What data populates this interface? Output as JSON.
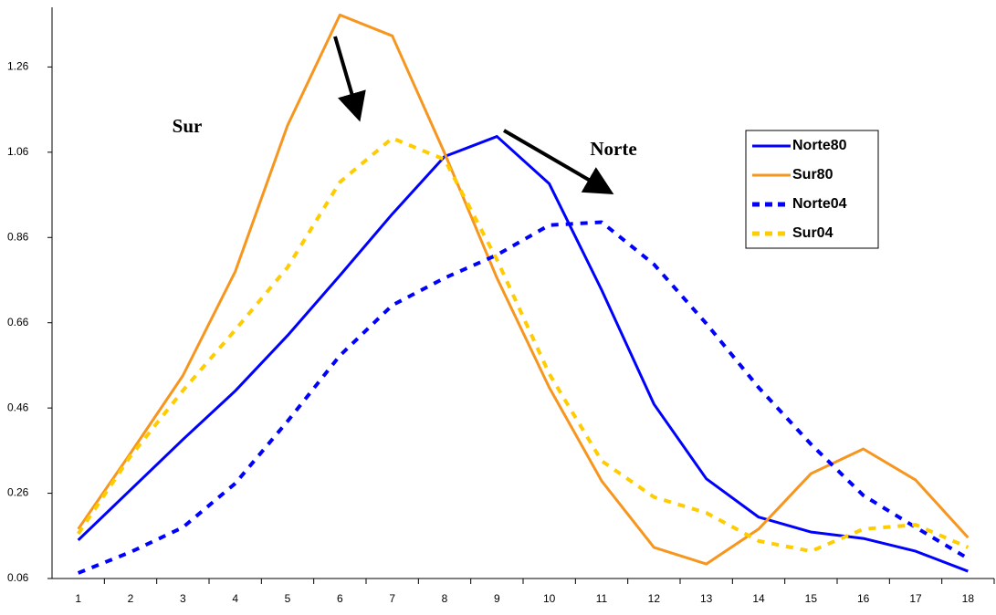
{
  "chart_data": {
    "type": "line",
    "categories": [
      "1",
      "2",
      "3",
      "4",
      "5",
      "6",
      "7",
      "8",
      "9",
      "10",
      "11",
      "12",
      "13",
      "14",
      "15",
      "16",
      "17",
      "18"
    ],
    "series": [
      {
        "name": "Norte80",
        "color": "#0000ff",
        "dashed": false,
        "values": [
          0.15,
          0.268,
          0.386,
          0.5,
          0.63,
          0.771,
          0.915,
          1.05,
          1.097,
          0.986,
          0.737,
          0.469,
          0.294,
          0.204,
          0.169,
          0.154,
          0.124,
          0.077
        ]
      },
      {
        "name": "Sur80",
        "color": "#f7961e",
        "dashed": false,
        "values": [
          0.176,
          0.354,
          0.536,
          0.78,
          1.123,
          1.382,
          1.333,
          1.058,
          0.765,
          0.508,
          0.289,
          0.133,
          0.094,
          0.176,
          0.306,
          0.364,
          0.291,
          0.156
        ]
      },
      {
        "name": "Norte04",
        "color": "#0000ff",
        "dashed": true,
        "values": [
          0.073,
          0.122,
          0.18,
          0.283,
          0.429,
          0.583,
          0.701,
          0.765,
          0.819,
          0.889,
          0.896,
          0.797,
          0.658,
          0.508,
          0.375,
          0.255,
          0.18,
          0.107
        ]
      },
      {
        "name": "Sur04",
        "color": "#ffcc00",
        "dashed": true,
        "values": [
          0.165,
          0.347,
          0.501,
          0.643,
          0.79,
          0.99,
          1.093,
          1.043,
          0.808,
          0.54,
          0.336,
          0.251,
          0.214,
          0.148,
          0.124,
          0.176,
          0.186,
          0.133
        ]
      }
    ],
    "ylim": [
      0.06,
      1.4
    ],
    "yticks": [
      0.06,
      0.26,
      0.46,
      0.66,
      0.86,
      1.06,
      1.26
    ],
    "grid": false,
    "legend": "right",
    "annotations": [
      "Sur",
      "Norte"
    ]
  }
}
